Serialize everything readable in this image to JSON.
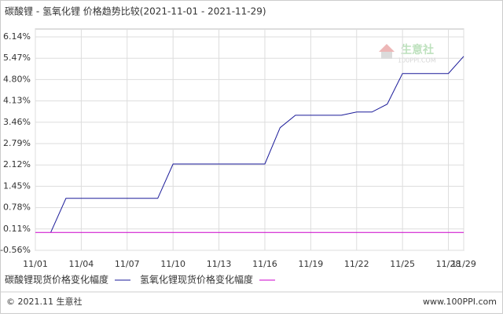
{
  "chart_data": {
    "type": "line",
    "title": "碳酸锂 - 氢氧化锂 价格趋势比较(2021-11-01 - 2021-11-29)",
    "series": [
      {
        "name": "碳酸锂现货价格变化幅度",
        "color": "#1a1a99",
        "x": [
          "11/02",
          "11/03",
          "11/09",
          "11/10",
          "11/16",
          "11/17",
          "11/18",
          "11/21",
          "11/22",
          "11/23",
          "11/24",
          "11/25",
          "11/28",
          "11/29"
        ],
        "values": [
          0,
          1.07,
          1.07,
          2.15,
          2.15,
          3.29,
          3.68,
          3.68,
          3.78,
          3.78,
          4.03,
          4.99,
          4.99,
          5.53
        ]
      },
      {
        "name": "氢氧化锂现货价格变化幅度",
        "color": "#cc00cc",
        "x": [
          "11/01",
          "11/29"
        ],
        "values": [
          0,
          0
        ]
      }
    ],
    "xlim": [
      "11/01",
      "11/29"
    ],
    "xticks": [
      "11/01",
      "11/04",
      "11/07",
      "11/10",
      "11/13",
      "11/16",
      "11/19",
      "11/22",
      "11/25",
      "11/28",
      "11/29"
    ],
    "ylim": [
      -0.56,
      6.14
    ],
    "yticks": [
      {
        "value": -0.56,
        "label": "-0.56%"
      },
      {
        "value": 0.11,
        "label": "0.11%"
      },
      {
        "value": 0.78,
        "label": "0.78%"
      },
      {
        "value": 1.45,
        "label": "1.45%"
      },
      {
        "value": 2.12,
        "label": "2.12%"
      },
      {
        "value": 2.79,
        "label": "2.79%"
      },
      {
        "value": 3.46,
        "label": "3.46%"
      },
      {
        "value": 4.13,
        "label": "4.13%"
      },
      {
        "value": 4.8,
        "label": "4.80%"
      },
      {
        "value": 5.47,
        "label": "5.47%"
      },
      {
        "value": 6.14,
        "label": "6.14%"
      }
    ],
    "grid": true,
    "watermark": {
      "name": "生意社",
      "url": "100PPI.COM"
    },
    "footer": {
      "left": "© 2021.11 生意社",
      "right": "www.100PPI.com"
    }
  }
}
